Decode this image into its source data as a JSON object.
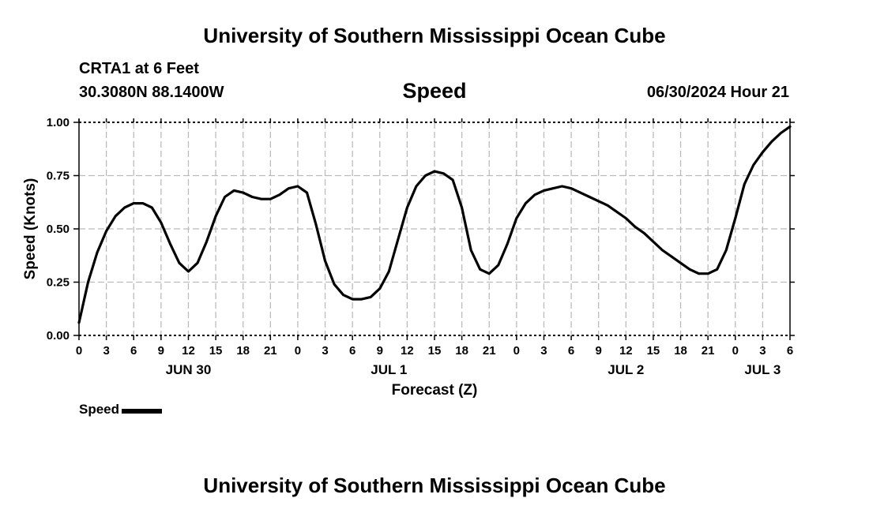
{
  "header": {
    "org_title": "University of Southern Mississippi Ocean Cube",
    "station": "CRTA1 at 6 Feet",
    "coords": "30.3080N  88.1400W",
    "variable": "Speed",
    "timestamp": "06/30/2024 Hour 21"
  },
  "footer": {
    "org_title": "University of Southern Mississippi Ocean Cube"
  },
  "legend": {
    "label": "Speed"
  },
  "chart_data": {
    "type": "line",
    "title": "Speed",
    "xlabel": "Forecast (Z)",
    "ylabel": "Speed (Knots)",
    "ylim": [
      0,
      1
    ],
    "xlim_hours": [
      0,
      78
    ],
    "grid": true,
    "legend_position": "bottom-left",
    "line_color": "#000000",
    "grid_color": "#bbbbbb",
    "yticks": [
      0.0,
      0.25,
      0.5,
      0.75,
      1.0
    ],
    "ytick_labels": [
      "0.00",
      "0.25",
      "0.50",
      "0.75",
      "1.00"
    ],
    "xtick_labels": [
      "0",
      "3",
      "6",
      "9",
      "12",
      "15",
      "18",
      "21",
      "0",
      "3",
      "6",
      "9",
      "12",
      "15",
      "18",
      "21",
      "0",
      "3",
      "6",
      "9",
      "12",
      "15",
      "18",
      "21",
      "0",
      "3",
      "6"
    ],
    "day_labels": [
      {
        "label": "JUN 30",
        "hour": 12
      },
      {
        "label": "JUL 1",
        "hour": 34
      },
      {
        "label": "JUL 2",
        "hour": 60
      },
      {
        "label": "JUL 3",
        "hour": 75
      }
    ],
    "series": [
      {
        "name": "Speed",
        "x": [
          0,
          1,
          2,
          3,
          4,
          5,
          6,
          7,
          8,
          9,
          10,
          11,
          12,
          13,
          14,
          15,
          16,
          17,
          18,
          19,
          20,
          21,
          22,
          23,
          24,
          25,
          26,
          27,
          28,
          29,
          30,
          31,
          32,
          33,
          34,
          35,
          36,
          37,
          38,
          39,
          40,
          41,
          42,
          43,
          44,
          45,
          46,
          47,
          48,
          49,
          50,
          51,
          52,
          53,
          54,
          55,
          56,
          57,
          58,
          59,
          60,
          61,
          62,
          63,
          64,
          65,
          66,
          67,
          68,
          69,
          70,
          71,
          72,
          73,
          74,
          75,
          76,
          77,
          78
        ],
        "values": [
          0.06,
          0.25,
          0.39,
          0.49,
          0.56,
          0.6,
          0.62,
          0.62,
          0.6,
          0.53,
          0.43,
          0.34,
          0.3,
          0.34,
          0.44,
          0.56,
          0.65,
          0.68,
          0.67,
          0.65,
          0.64,
          0.64,
          0.66,
          0.69,
          0.7,
          0.67,
          0.52,
          0.35,
          0.24,
          0.19,
          0.17,
          0.17,
          0.18,
          0.22,
          0.3,
          0.45,
          0.6,
          0.7,
          0.75,
          0.77,
          0.76,
          0.73,
          0.6,
          0.4,
          0.31,
          0.29,
          0.33,
          0.43,
          0.55,
          0.62,
          0.66,
          0.68,
          0.69,
          0.7,
          0.69,
          0.67,
          0.65,
          0.63,
          0.61,
          0.58,
          0.55,
          0.51,
          0.48,
          0.44,
          0.4,
          0.37,
          0.34,
          0.31,
          0.29,
          0.29,
          0.31,
          0.4,
          0.55,
          0.71,
          0.8,
          0.86,
          0.91,
          0.95,
          0.98
        ]
      }
    ]
  }
}
